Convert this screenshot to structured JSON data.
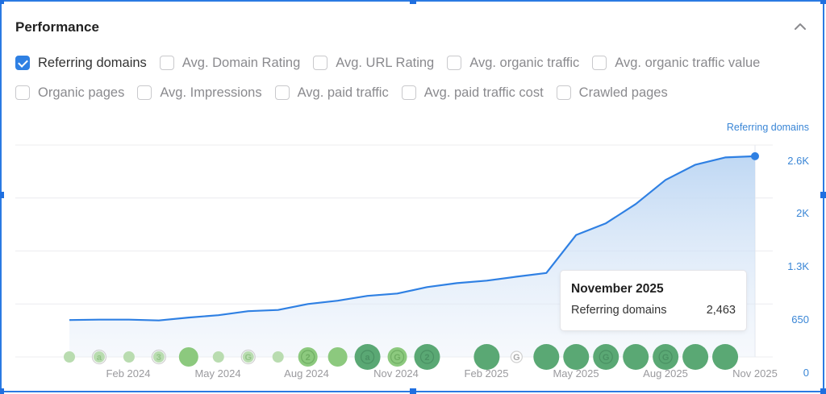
{
  "header": {
    "title": "Performance",
    "collapse_icon": "chevron-up-icon"
  },
  "metrics": {
    "row1": [
      {
        "label": "Referring domains",
        "checked": true
      },
      {
        "label": "Avg. Domain Rating",
        "checked": false
      },
      {
        "label": "Avg. URL Rating",
        "checked": false
      },
      {
        "label": "Avg. organic traffic",
        "checked": false
      },
      {
        "label": "Avg. organic traffic value",
        "checked": false
      }
    ],
    "row2": [
      {
        "label": "Organic pages",
        "checked": false
      },
      {
        "label": "Avg. Impressions",
        "checked": false
      },
      {
        "label": "Avg. paid traffic",
        "checked": false
      },
      {
        "label": "Avg. paid traffic cost",
        "checked": false
      },
      {
        "label": "Crawled pages",
        "checked": false
      }
    ]
  },
  "chart": {
    "series_label": "Referring domains",
    "y_ticks": [
      "2.6K",
      "2K",
      "1.3K",
      "650",
      "0"
    ],
    "x_ticks": [
      "Feb 2024",
      "May 2024",
      "Aug 2024",
      "Nov 2024",
      "Feb 2025",
      "May 2025",
      "Aug 2025",
      "Nov 2025"
    ],
    "line_color": "#2f80e3",
    "fill_color": "#cfe1f6",
    "tooltip": {
      "title": "November 2025",
      "label": "Referring domains",
      "value": "2,463"
    }
  },
  "chart_data": {
    "type": "area",
    "title": "Performance",
    "xlabel": "",
    "ylabel": "Referring domains",
    "x": [
      "Dec 2023",
      "Jan 2024",
      "Feb 2024",
      "Mar 2024",
      "Apr 2024",
      "May 2024",
      "Jun 2024",
      "Jul 2024",
      "Aug 2024",
      "Sep 2024",
      "Oct 2024",
      "Nov 2024",
      "Dec 2024",
      "Jan 2025",
      "Feb 2025",
      "Mar 2025",
      "Apr 2025",
      "May 2025",
      "Jun 2025",
      "Jul 2025",
      "Aug 2025",
      "Sep 2025",
      "Oct 2025",
      "Nov 2025"
    ],
    "series": [
      {
        "name": "Referring domains",
        "values": [
          453,
          458,
          458,
          448,
          483,
          512,
          562,
          576,
          650,
          690,
          749,
          778,
          857,
          906,
          936,
          985,
          1030,
          1497,
          1640,
          1876,
          2172,
          2359,
          2448,
          2463
        ]
      }
    ],
    "ylim": [
      0,
      2600
    ],
    "y_ticks": [
      0,
      650,
      1300,
      1950,
      2600
    ],
    "y_tick_labels": [
      "0",
      "650",
      "1.3K",
      "2K",
      "2.6K"
    ],
    "x_tick_labels": [
      "Feb 2024",
      "May 2024",
      "Aug 2024",
      "Nov 2024",
      "Feb 2025",
      "May 2025",
      "Aug 2025",
      "Nov 2025"
    ],
    "grid": true,
    "legend": {
      "position": "top-right",
      "entries": [
        "Referring domains"
      ]
    },
    "annotations": [
      {
        "type": "tooltip",
        "x": "Nov 2025",
        "title": "November 2025",
        "label": "Referring domains",
        "value": 2463
      }
    ],
    "event_markers": [
      {
        "month": "Dec 2023",
        "size": "small",
        "shade": "light",
        "glyph": ""
      },
      {
        "month": "Jan 2024",
        "size": "small",
        "shade": "light",
        "glyph": "a"
      },
      {
        "month": "Feb 2024",
        "size": "small",
        "shade": "light",
        "glyph": ""
      },
      {
        "month": "Mar 2024",
        "size": "small",
        "shade": "light",
        "glyph": "3"
      },
      {
        "month": "Apr 2024",
        "size": "medium",
        "shade": "mid",
        "glyph": ""
      },
      {
        "month": "May 2024",
        "size": "small",
        "shade": "light",
        "glyph": ""
      },
      {
        "month": "Jun 2024",
        "size": "small",
        "shade": "light",
        "glyph": "G"
      },
      {
        "month": "Jul 2024",
        "size": "small",
        "shade": "light",
        "glyph": ""
      },
      {
        "month": "Aug 2024",
        "size": "medium",
        "shade": "mid",
        "glyph": "2"
      },
      {
        "month": "Sep 2024",
        "size": "medium",
        "shade": "mid",
        "glyph": ""
      },
      {
        "month": "Oct 2024",
        "size": "large",
        "shade": "dark",
        "glyph": "a"
      },
      {
        "month": "Nov 2024",
        "size": "medium",
        "shade": "mid",
        "glyph": "G"
      },
      {
        "month": "Dec 2024",
        "size": "large",
        "shade": "dark",
        "glyph": "2"
      },
      {
        "month": "Feb 2025",
        "size": "large",
        "shade": "dark",
        "glyph": ""
      },
      {
        "month": "Mar 2025",
        "size": "small",
        "shade": "outline",
        "glyph": "G"
      },
      {
        "month": "Apr 2025",
        "size": "large",
        "shade": "dark",
        "glyph": ""
      },
      {
        "month": "May 2025",
        "size": "large",
        "shade": "dark",
        "glyph": ""
      },
      {
        "month": "Jun 2025",
        "size": "large",
        "shade": "dark",
        "glyph": "G"
      },
      {
        "month": "Jul 2025",
        "size": "large",
        "shade": "dark",
        "glyph": ""
      },
      {
        "month": "Aug 2025",
        "size": "large",
        "shade": "dark",
        "glyph": "G"
      },
      {
        "month": "Sep 2025",
        "size": "large",
        "shade": "dark",
        "glyph": ""
      },
      {
        "month": "Oct 2025",
        "size": "large",
        "shade": "dark",
        "glyph": ""
      }
    ]
  }
}
